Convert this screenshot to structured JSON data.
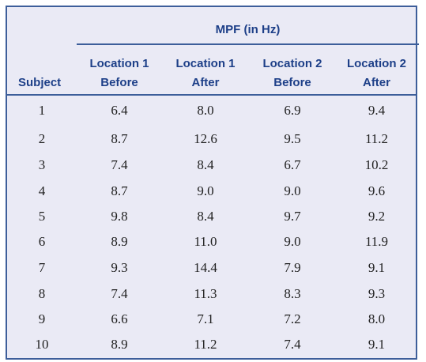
{
  "table": {
    "group_title": "MPF (in Hz)",
    "headers": [
      {
        "line1": "",
        "line2": "Subject"
      },
      {
        "line1": "Location 1",
        "line2": "Before"
      },
      {
        "line1": "Location 1",
        "line2": "After"
      },
      {
        "line1": "Location 2",
        "line2": "Before"
      },
      {
        "line1": "Location 2",
        "line2": "After"
      }
    ],
    "rows": [
      [
        "1",
        "6.4",
        "8.0",
        "6.9",
        "9.4"
      ],
      [
        "2",
        "8.7",
        "12.6",
        "9.5",
        "11.2"
      ],
      [
        "3",
        "7.4",
        "8.4",
        "6.7",
        "10.2"
      ],
      [
        "4",
        "8.7",
        "9.0",
        "9.0",
        "9.6"
      ],
      [
        "5",
        "9.8",
        "8.4",
        "9.7",
        "9.2"
      ],
      [
        "6",
        "8.9",
        "11.0",
        "9.0",
        "11.9"
      ],
      [
        "7",
        "9.3",
        "14.4",
        "7.9",
        "9.1"
      ],
      [
        "8",
        "7.4",
        "11.3",
        "8.3",
        "9.3"
      ],
      [
        "9",
        "6.6",
        "7.1",
        "7.2",
        "8.0"
      ],
      [
        "10",
        "8.9",
        "11.2",
        "7.4",
        "9.1"
      ]
    ]
  },
  "colors": {
    "header_text": "#1d3f88",
    "rule": "#3d5e9a",
    "background": "#eaeaf5"
  }
}
